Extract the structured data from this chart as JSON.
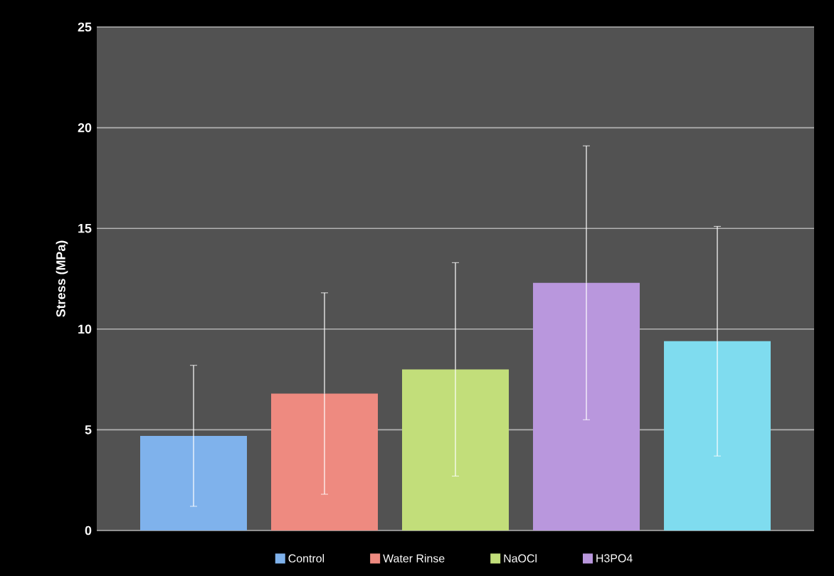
{
  "chart_data": {
    "type": "bar",
    "ylabel": "Stress (MPa)",
    "categories": [
      null
    ],
    "series": [
      {
        "name": "Control",
        "color": "#7fb2ec",
        "values": [
          4.7
        ],
        "errors": [
          3.5
        ]
      },
      {
        "name": "Water Rinse",
        "color": "#ee8a80",
        "values": [
          6.8
        ],
        "errors": [
          5.0
        ]
      },
      {
        "name": "NaOCl",
        "color": "#c2de7a",
        "values": [
          8.0
        ],
        "errors": [
          5.3
        ]
      },
      {
        "name": "H3PO4",
        "color": "#b997dd",
        "values": [
          12.3
        ],
        "errors": [
          6.8
        ]
      },
      {
        "color": "#7fdcef",
        "values": [
          9.4
        ],
        "errors": [
          5.7
        ]
      }
    ],
    "ylim": [
      0,
      25
    ],
    "yticks": [
      0,
      5,
      10,
      15,
      20,
      25
    ],
    "grid": "y",
    "legend": "bottom"
  }
}
